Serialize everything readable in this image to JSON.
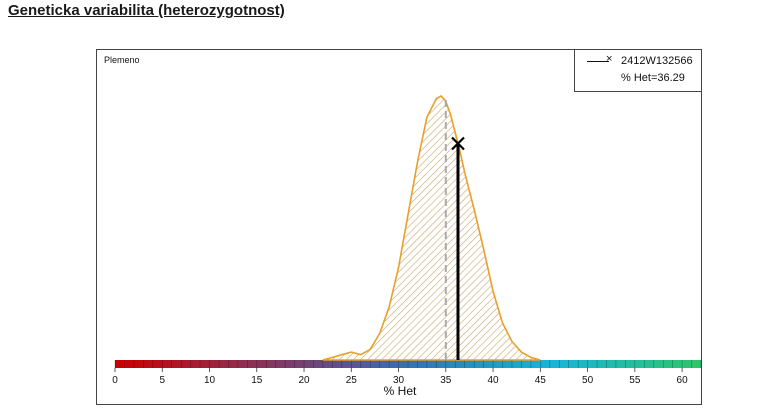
{
  "page": {
    "title": "Geneticka variabilita (heterozygotnost)"
  },
  "chart_data": {
    "type": "area",
    "group_label": "Plemeno",
    "xlabel": "% Het",
    "ylabel": "",
    "xlim": [
      0,
      62
    ],
    "x_ticks": [
      0,
      5,
      10,
      15,
      20,
      25,
      30,
      35,
      40,
      45,
      50,
      55,
      60
    ],
    "grid": false,
    "legend_position": "top-right",
    "series": [
      {
        "kind": "density",
        "x": [
          22,
          23,
          24,
          25,
          26,
          27,
          28,
          29,
          30,
          31,
          32,
          33,
          34,
          34.5,
          35,
          35.5,
          36,
          36.5,
          37,
          38,
          39,
          40,
          41,
          42,
          43,
          44,
          45
        ],
        "y": [
          0,
          0.01,
          0.02,
          0.03,
          0.02,
          0.04,
          0.1,
          0.2,
          0.35,
          0.55,
          0.75,
          0.92,
          0.99,
          1.0,
          0.98,
          0.93,
          0.86,
          0.79,
          0.71,
          0.57,
          0.42,
          0.26,
          0.14,
          0.07,
          0.03,
          0.01,
          0
        ],
        "color": "#e8a02a",
        "fill": "hatched"
      }
    ],
    "reference_line": {
      "x": 35,
      "style": "dashed",
      "color": "#aaaaaa"
    },
    "marker": {
      "label": "2412W132566",
      "value_label": "% Het=36.29",
      "x": 36.29,
      "y": 0.82,
      "symbol": "×",
      "color": "#000000"
    },
    "color_scale": [
      "#cc0000",
      "#7a3d6b",
      "#3a6fb0",
      "#19b5d8",
      "#2ec46a"
    ]
  }
}
